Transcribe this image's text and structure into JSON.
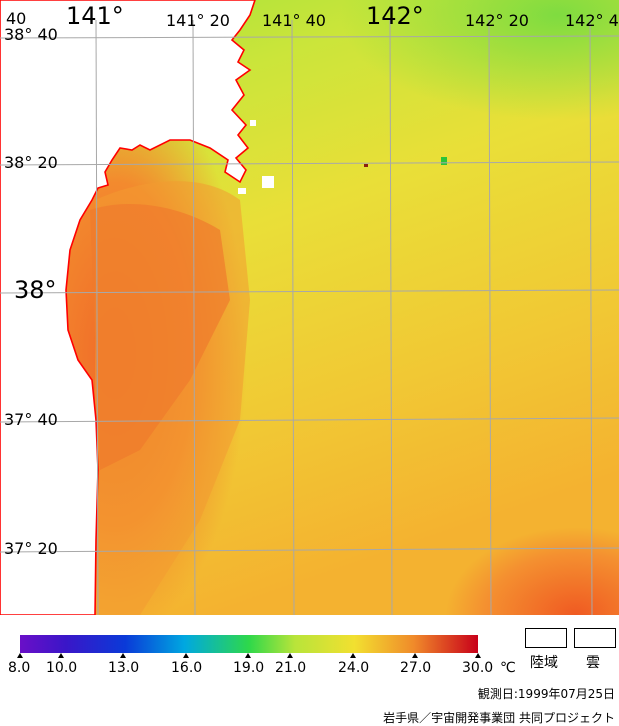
{
  "map": {
    "lon_labels": {
      "l141": "141°",
      "l141_20": "141° 20",
      "l141_40": "141° 40",
      "l142": "142°",
      "l142_20": "142° 20",
      "l142_40": "142° 4"
    },
    "lat_labels": {
      "l38_40_top": "40",
      "l38_40": "38° 40",
      "l38_20": "38° 20",
      "l38": "38°",
      "l37_40": "37° 40",
      "l37_20": "37° 20"
    },
    "colors": {
      "coastline": "#ff0000",
      "grid": "#a8a8a8",
      "land": "#ffffff",
      "sea_north": "#b6e43a",
      "sea_mid": "#e6e23a",
      "sea_warm": "#f6b633",
      "coastal_hot": "#f37a2c"
    }
  },
  "legend": {
    "ticks": [
      "8.0",
      "10.0",
      "13.0",
      "16.0",
      "19.0",
      "21.0",
      "24.0",
      "27.0",
      "30.0"
    ],
    "unit": "℃",
    "land_label": "陸域",
    "cloud_label": "雲"
  },
  "footer": {
    "observation_date": "観測日:1999年07月25日",
    "credit": "岩手県／宇宙開発事業団  共同プロジェクト"
  }
}
